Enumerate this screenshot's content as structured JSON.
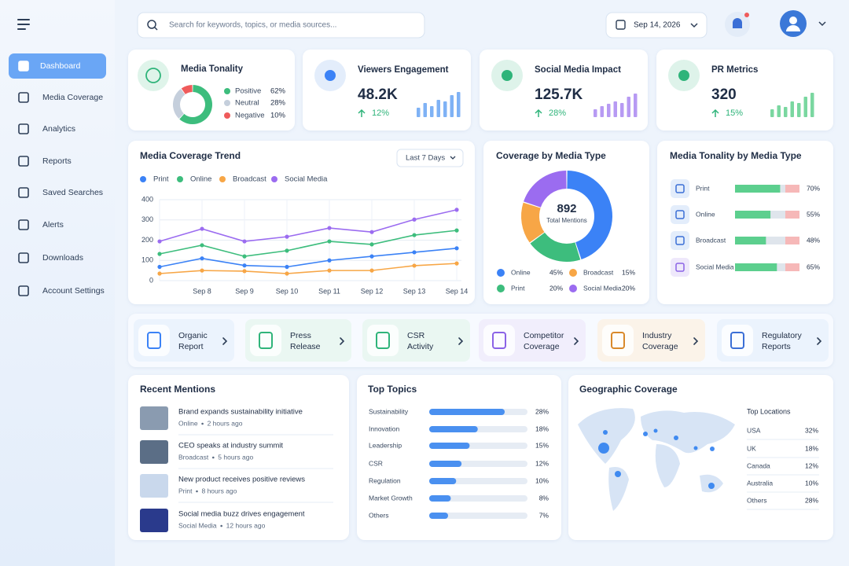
{
  "sidebar": {
    "items": [
      "Dashboard",
      "Media Coverage",
      "Analytics",
      "Reports",
      "Saved Searches",
      "Alerts",
      "Downloads",
      "Account Settings"
    ]
  },
  "header": {
    "search_placeholder": "Search for keywords, topics, or media sources...",
    "date": "Sep 14, 2026"
  },
  "tonality": {
    "type": "pie",
    "title": "Media Tonality",
    "categories": [
      "Positive",
      "Neutral",
      "Negative"
    ],
    "values": [
      62,
      28,
      10
    ],
    "value_labels": [
      "62%",
      "28%",
      "10%"
    ],
    "colors": [
      "#3dbd7d",
      "#c5cfdc",
      "#ef5b5b"
    ]
  },
  "kpis": [
    {
      "title": "Viewers Engagement",
      "value": "48.2K",
      "change": "12%",
      "type": "bar",
      "bars": [
        12,
        18,
        14,
        22,
        20,
        28,
        32
      ],
      "color": "#7fb2f5",
      "icon_color": "#3b82f6"
    },
    {
      "title": "Social Media Impact",
      "value": "125.7K",
      "change": "28%",
      "type": "bar",
      "bars": [
        10,
        14,
        17,
        20,
        18,
        26,
        30
      ],
      "color": "#b79af3",
      "icon_color": "#2fb47a"
    },
    {
      "title": "PR Metrics",
      "value": "320",
      "change": "15%",
      "type": "bar",
      "bars": [
        10,
        15,
        13,
        20,
        18,
        26,
        31
      ],
      "color": "#7ad7a0",
      "icon_color": "#2fb47a"
    }
  ],
  "trend": {
    "type": "line",
    "title": "Media Coverage Trend",
    "filter": "Last 7 Days",
    "categories": [
      null,
      "Sep 8",
      "Sep 9",
      "Sep 10",
      "Sep 11",
      "Sep 12",
      "Sep 13",
      "Sep 14"
    ],
    "ylim": [
      0,
      400
    ],
    "yticks": [
      0,
      100,
      200,
      300,
      400
    ],
    "grid": true,
    "series": [
      {
        "name": "Print",
        "color": "#3b82f6",
        "values": [
          68,
          110,
          75,
          68,
          100,
          120,
          140,
          160
        ]
      },
      {
        "name": "Online",
        "color": "#3dbd7d",
        "values": [
          132,
          175,
          120,
          148,
          194,
          179,
          225,
          248
        ]
      },
      {
        "name": "Broadcast",
        "color": "#f7a646",
        "values": [
          35,
          50,
          47,
          35,
          50,
          50,
          74,
          85
        ]
      },
      {
        "name": "Social Media",
        "color": "#9b6cf0",
        "values": [
          194,
          256,
          194,
          217,
          260,
          240,
          302,
          350
        ]
      }
    ]
  },
  "media_type": {
    "type": "pie",
    "title": "Coverage by Media Type",
    "total": "892",
    "total_label": "Total Mentions",
    "categories": [
      "Online",
      "Print",
      "Broadcast",
      "Social Media"
    ],
    "values": [
      45,
      20,
      15,
      20
    ],
    "value_labels": [
      "45%",
      "20%",
      "15%",
      "20%"
    ],
    "colors": [
      "#3b82f6",
      "#3dbd7d",
      "#f7a646",
      "#9b6cf0"
    ]
  },
  "tonality_by_type": {
    "type": "bar",
    "title": "Media Tonality by Media Type",
    "categories": [
      "Print",
      "Online",
      "Broadcast",
      "Social Media"
    ],
    "values": [
      70,
      55,
      48,
      65
    ],
    "value_labels": [
      "70%",
      "55%",
      "48%",
      "65%"
    ],
    "color": "#5ccf8e"
  },
  "shortcuts": [
    {
      "label": [
        "Organic",
        "Report"
      ],
      "color": "#3b82f6",
      "bg": "#e6effc"
    },
    {
      "label": [
        "Press",
        "Release"
      ],
      "color": "#2fb47a",
      "bg": "#e4f5ec"
    },
    {
      "label": [
        "CSR",
        "Activity"
      ],
      "color": "#2fb47a",
      "bg": "#e4f5ec"
    },
    {
      "label": [
        "Competitor",
        "Coverage"
      ],
      "color": "#8b63e6",
      "bg": "#eee8fb"
    },
    {
      "label": [
        "Industry",
        "Coverage"
      ],
      "color": "#d9892b",
      "bg": "#fcefdf"
    },
    {
      "label": [
        "Regulatory",
        "Reports"
      ],
      "color": "#3b6fd6",
      "bg": "#e6effc"
    }
  ],
  "mentions": {
    "title": "Recent Mentions",
    "items": [
      {
        "title": "Brand expands sustainability initiative",
        "source": "Online",
        "time": "2 hours ago"
      },
      {
        "title": "CEO speaks at industry summit",
        "source": "Broadcast",
        "time": "5 hours ago"
      },
      {
        "title": "New product receives positive reviews",
        "source": "Print",
        "time": "8 hours ago"
      },
      {
        "title": "Social media buzz drives engagement",
        "source": "Social Media",
        "time": "12 hours ago"
      }
    ]
  },
  "topics": {
    "type": "bar",
    "title": "Top Topics",
    "categories": [
      "Sustainability",
      "Innovation",
      "Leadership",
      "CSR",
      "Regulation",
      "Market Growth",
      "Others"
    ],
    "values": [
      28,
      18,
      15,
      12,
      10,
      8,
      7
    ],
    "value_labels": [
      "28%",
      "18%",
      "15%",
      "12%",
      "10%",
      "8%",
      "7%"
    ],
    "color": "#4a90f0"
  },
  "geo": {
    "title": "Geographic Coverage",
    "list_title": "Top Locations",
    "categories": [
      "USA",
      "UK",
      "Canada",
      "Australia",
      "Others"
    ],
    "values": [
      32,
      18,
      12,
      10,
      28
    ],
    "value_labels": [
      "32%",
      "18%",
      "12%",
      "10%",
      "28%"
    ]
  }
}
